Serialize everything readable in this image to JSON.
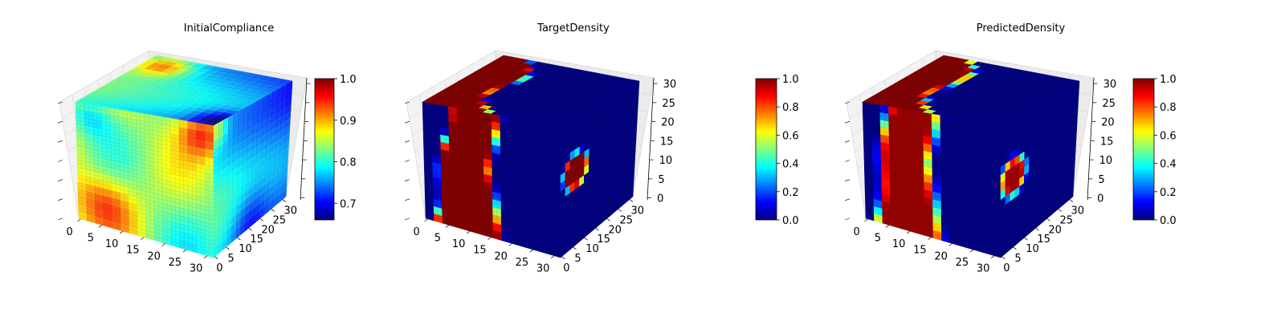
{
  "figure": {
    "colormap": "jet",
    "colormap_stops": [
      "#00007f",
      "#0000ff",
      "#007fff",
      "#00ffff",
      "#7fff7f",
      "#ffff00",
      "#ff7f00",
      "#ff0000",
      "#7f0000"
    ],
    "pane_colors": {
      "left": "#f2f2f2",
      "right": "#ebebeb",
      "floor": "#e6e6e6"
    }
  },
  "chart_data": [
    {
      "type": "heatmap",
      "title": "InitialCompliance",
      "x_ticks": [
        "0",
        "5",
        "10",
        "15",
        "20",
        "25",
        "30"
      ],
      "y_ticks": [
        "0",
        "5",
        "10",
        "15",
        "20",
        "25",
        "30"
      ],
      "z_ticks": [],
      "grid": true,
      "colorbar": {
        "min": 0.66,
        "max": 1.0,
        "tick_values": [
          0.7,
          0.8,
          0.9,
          1.0
        ],
        "tick_labels": [
          "0.7",
          "0.8",
          "0.9",
          "1.0"
        ]
      },
      "field": "compliance"
    },
    {
      "type": "heatmap",
      "title": "TargetDensity",
      "x_ticks": [
        "0",
        "5",
        "10",
        "15",
        "20",
        "25",
        "30"
      ],
      "y_ticks": [
        "0",
        "5",
        "10",
        "15",
        "20",
        "25",
        "30"
      ],
      "z_ticks": [
        "0",
        "5",
        "10",
        "15",
        "20",
        "25",
        "30"
      ],
      "grid": true,
      "colorbar": {
        "min": 0.0,
        "max": 1.0,
        "tick_values": [
          0.0,
          0.2,
          0.4,
          0.6,
          0.8,
          1.0
        ],
        "tick_labels": [
          "0.0",
          "0.2",
          "0.4",
          "0.6",
          "0.8",
          "1.0"
        ]
      },
      "field": "target"
    },
    {
      "type": "heatmap",
      "title": "PredictedDensity",
      "x_ticks": [
        "0",
        "5",
        "10",
        "15",
        "20",
        "25",
        "30"
      ],
      "y_ticks": [
        "0",
        "5",
        "10",
        "15",
        "20",
        "25",
        "30"
      ],
      "z_ticks": [
        "0",
        "5",
        "10",
        "15",
        "20",
        "25",
        "30"
      ],
      "grid": true,
      "colorbar": {
        "min": 0.0,
        "max": 1.0,
        "tick_values": [
          0.0,
          0.2,
          0.4,
          0.6,
          0.8,
          1.0
        ],
        "tick_labels": [
          "0.0",
          "0.2",
          "0.4",
          "0.6",
          "0.8",
          "1.0"
        ]
      },
      "field": "predicted"
    }
  ]
}
